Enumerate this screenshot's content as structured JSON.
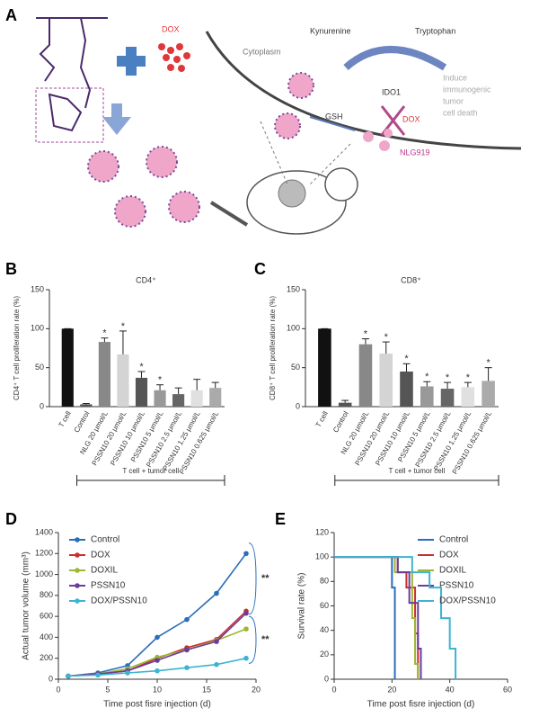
{
  "panels": [
    "A",
    "B",
    "C",
    "D",
    "E"
  ],
  "diagram": {
    "dox_top": "DOX",
    "cytoplasm": "Cytoplasm",
    "kynurenine": "Kynurenine",
    "tryptophan": "Tryptophan",
    "ido1": "IDO1",
    "induce": [
      "Induce",
      "immunogenic",
      "tumor",
      "cell death"
    ],
    "gsh": "GSH",
    "dox_cell": "DOX",
    "nlg919": "NLG919"
  },
  "chart_data": [
    {
      "type": "bar",
      "title": "CD4⁺",
      "y_label": "CD4⁺ T cell proliferation rate (%)",
      "group_label": "T cell + tumor cell",
      "categories": [
        "T cell",
        "Control",
        "NLG 20 μmol/L",
        "PSSN10 20 μmol/L",
        "PSSN10 10 μmol/L",
        "PSSN10 5 μmol/L",
        "PSSN10 2.5 μmol/L",
        "PSSN10 1.25 μmol/L",
        "PSSN10 0.625 μmol/L"
      ],
      "values": [
        100,
        3,
        83,
        67,
        37,
        21,
        16,
        21,
        24
      ],
      "errors": [
        0,
        1,
        5,
        30,
        8,
        7,
        8,
        14,
        7
      ],
      "significance": [
        null,
        null,
        "*",
        "*",
        "*",
        "*",
        null,
        null,
        null
      ],
      "colors": [
        "#111111",
        "#555555",
        "#888888",
        "#d4d4d4",
        "#555555",
        "#999999",
        "#666666",
        "#e0e0e0",
        "#aaaaaa"
      ],
      "ylim": [
        0,
        150
      ],
      "yticks": [
        0,
        50,
        100,
        150
      ]
    },
    {
      "type": "bar",
      "title": "CD8⁺",
      "y_label": "CD8⁺ T cell proliferation rate (%)",
      "group_label": "T cell + tumor cell",
      "categories": [
        "T cell",
        "Control",
        "NLG 20 μmol/L",
        "PSSN10 20 μmol/L",
        "PSSN10 10 μmol/L",
        "PSSN10 5 μmol/L",
        "PSSN10 2.5 μmol/L",
        "PSSN10 1.25 μmol/L",
        "PSSN10 0.625 μmol/L"
      ],
      "values": [
        100,
        5,
        80,
        68,
        45,
        26,
        23,
        25,
        33
      ],
      "errors": [
        0,
        3,
        7,
        15,
        10,
        6,
        8,
        6,
        17
      ],
      "significance": [
        null,
        null,
        "*",
        "*",
        "*",
        "*",
        "*",
        "*",
        "*"
      ],
      "colors": [
        "#111111",
        "#555555",
        "#888888",
        "#d4d4d4",
        "#555555",
        "#999999",
        "#666666",
        "#e0e0e0",
        "#aaaaaa"
      ],
      "ylim": [
        0,
        150
      ],
      "yticks": [
        0,
        50,
        100,
        150
      ]
    },
    {
      "type": "line",
      "x_label": "Time post fisre injection (d)",
      "y_label": "Actual tumor volume (mm³)",
      "x": [
        1,
        4,
        7,
        10,
        13,
        16,
        19
      ],
      "series": [
        {
          "name": "Control",
          "color": "#2a6ebb",
          "values": [
            30,
            60,
            130,
            400,
            570,
            820,
            1200
          ]
        },
        {
          "name": "DOX",
          "color": "#c8302e",
          "values": [
            30,
            50,
            80,
            200,
            300,
            380,
            650
          ]
        },
        {
          "name": "DOXIL",
          "color": "#9ab832",
          "values": [
            30,
            50,
            100,
            210,
            280,
            370,
            480
          ]
        },
        {
          "name": "PSSN10",
          "color": "#6a3d9a",
          "values": [
            30,
            50,
            80,
            180,
            280,
            360,
            630
          ]
        },
        {
          "name": "DOX/PSSN10",
          "color": "#3cb4d2",
          "values": [
            30,
            40,
            60,
            80,
            110,
            140,
            200
          ]
        }
      ],
      "annotations": [
        "**",
        "**"
      ],
      "xlim": [
        0,
        20
      ],
      "xticks": [
        0,
        5,
        10,
        15,
        20
      ],
      "ylim": [
        0,
        1400
      ],
      "yticks": [
        0,
        200,
        400,
        600,
        800,
        1000,
        1200,
        1400
      ],
      "legend": "top-left"
    },
    {
      "type": "step",
      "x_label": "Time post fisre injection (d)",
      "y_label": "Survival rate (%)",
      "series": [
        {
          "name": "Control",
          "color": "#2a6ebb",
          "x": [
            0,
            20,
            20,
            21,
            21
          ],
          "values": [
            100,
            100,
            75,
            75,
            0
          ]
        },
        {
          "name": "DOX",
          "color": "#c8302e",
          "x": [
            0,
            22,
            22,
            25,
            25,
            28,
            28,
            29,
            29
          ],
          "values": [
            100,
            100,
            87.5,
            87.5,
            75,
            75,
            37.5,
            37.5,
            0
          ]
        },
        {
          "name": "DOXIL",
          "color": "#9ab832",
          "x": [
            0,
            21,
            21,
            27,
            27,
            28,
            28,
            29,
            29
          ],
          "values": [
            100,
            100,
            87.5,
            87.5,
            50,
            50,
            12.5,
            12.5,
            0
          ]
        },
        {
          "name": "PSSN10",
          "color": "#6a3d9a",
          "x": [
            0,
            22,
            22,
            26,
            26,
            29,
            29,
            30,
            30
          ],
          "values": [
            100,
            100,
            87.5,
            87.5,
            62.5,
            62.5,
            25,
            25,
            0
          ]
        },
        {
          "name": "DOX/PSSN10",
          "color": "#3cb4d2",
          "x": [
            0,
            27,
            27,
            33,
            33,
            37,
            37,
            40,
            40,
            42,
            42
          ],
          "values": [
            100,
            100,
            87.5,
            87.5,
            75,
            75,
            50,
            50,
            25,
            25,
            0
          ]
        }
      ],
      "xlim": [
        0,
        60
      ],
      "xticks": [
        0,
        20,
        40,
        60
      ],
      "ylim": [
        0,
        120
      ],
      "yticks": [
        0,
        20,
        40,
        60,
        80,
        100,
        120
      ],
      "legend": "top-right"
    }
  ]
}
